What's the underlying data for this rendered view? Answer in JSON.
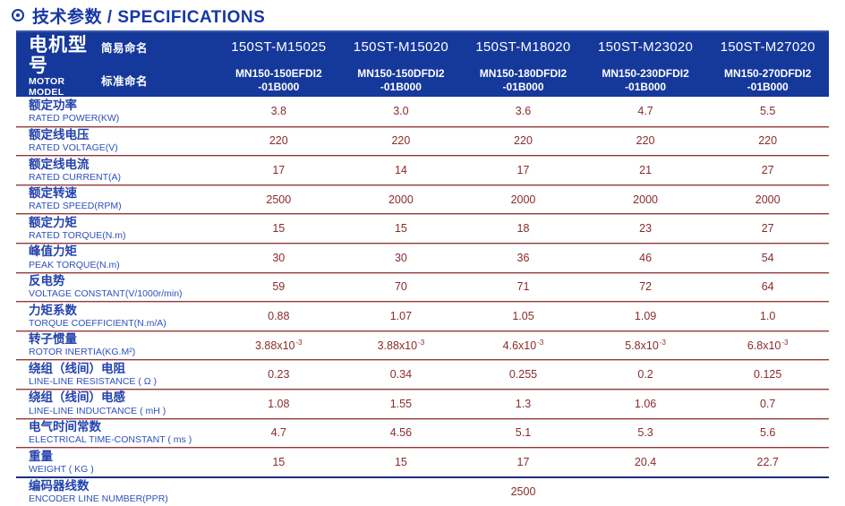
{
  "title": {
    "text": "技术参数 / SPECIFICATIONS"
  },
  "icons": {
    "section_bullet": "circle-dot-icon"
  },
  "colors": {
    "title_blue": "#1737a6",
    "header_bg": "#15389b",
    "header_text": "#ffffff",
    "label_blue": "#2343ae",
    "value_maroon": "#8a2b2b",
    "separator_dark": "#8f3a3a",
    "separator_light": "#dcb2b2",
    "separator_navy": "#1d2f7c"
  },
  "table": {
    "header": {
      "motor_model_cn": "电机型号",
      "motor_model_en": "MOTOR MODEL",
      "simple_name_label": "简易命名",
      "standard_name_label": "标准命名",
      "columns": [
        {
          "simple": "150ST-M15025",
          "standard": "MN150-150EFDI2\n-01B000"
        },
        {
          "simple": "150ST-M15020",
          "standard": "MN150-150DFDI2\n-01B000"
        },
        {
          "simple": "150ST-M18020",
          "standard": "MN150-180DFDI2\n-01B000"
        },
        {
          "simple": "150ST-M23020",
          "standard": "MN150-230DFDI2\n-01B000"
        },
        {
          "simple": "150ST-M27020",
          "standard": "MN150-270DFDI2\n-01B000"
        }
      ]
    },
    "rows": [
      {
        "cn": "额定功率",
        "en": "RATED POWER(KW)",
        "values": [
          "3.8",
          "3.0",
          "3.6",
          "4.7",
          "5.5"
        ]
      },
      {
        "cn": "额定线电压",
        "en": "RATED VOLTAGE(V)",
        "values": [
          "220",
          "220",
          "220",
          "220",
          "220"
        ]
      },
      {
        "cn": "额定线电流",
        "en": "RATED CURRENT(A)",
        "values": [
          "17",
          "14",
          "17",
          "21",
          "27"
        ]
      },
      {
        "cn": "额定转速",
        "en": "RATED SPEED(RPM)",
        "values": [
          "2500",
          "2000",
          "2000",
          "2000",
          "2000"
        ]
      },
      {
        "cn": "额定力矩",
        "en": "RATED TORQUE(N.m)",
        "values": [
          "15",
          "15",
          "18",
          "23",
          "27"
        ]
      },
      {
        "cn": "峰值力矩",
        "en": "PEAK TORQUE(N.m)",
        "values": [
          "30",
          "30",
          "36",
          "46",
          "54"
        ]
      },
      {
        "cn": "反电势",
        "en": "VOLTAGE CONSTANT(V/1000r/min)",
        "values": [
          "59",
          "70",
          "71",
          "72",
          "64"
        ]
      },
      {
        "cn": "力矩系数",
        "en": "TORQUE COEFFICIENT(N.m/A)",
        "values": [
          "0.88",
          "1.07",
          "1.05",
          "1.09",
          "1.0"
        ]
      },
      {
        "cn": "转子惯量",
        "en": "ROTOR INERTIA(KG.M²)",
        "values": [
          "3.88x10^-3",
          "3.88x10^-3",
          "4.6x10^-3",
          "5.8x10^-3",
          "6.8x10^-3"
        ]
      },
      {
        "cn": "绕组（线间）电阻",
        "en": "LINE-LINE RESISTANCE ( Ω )",
        "values": [
          "0.23",
          "0.34",
          "0.255",
          "0.2",
          "0.125"
        ]
      },
      {
        "cn": "绕组（线间）电感",
        "en": "LINE-LINE INDUCTANCE ( mH )",
        "values": [
          "1.08",
          "1.55",
          "1.3",
          "1.06",
          "0.7"
        ]
      },
      {
        "cn": "电气时间常数",
        "en": "ELECTRICAL TIME-CONSTANT ( ms )",
        "values": [
          "4.7",
          "4.56",
          "5.1",
          "5.3",
          "5.6"
        ]
      },
      {
        "cn": "重量",
        "en": "WEIGHT ( KG )",
        "values": [
          "15",
          "15",
          "17",
          "20.4",
          "22.7"
        ]
      },
      {
        "cn": "编码器线数",
        "en": "ENCODER LINE NUMBER(PPR)",
        "values": [
          "2500"
        ],
        "merged": true,
        "sep": "navy"
      }
    ]
  }
}
